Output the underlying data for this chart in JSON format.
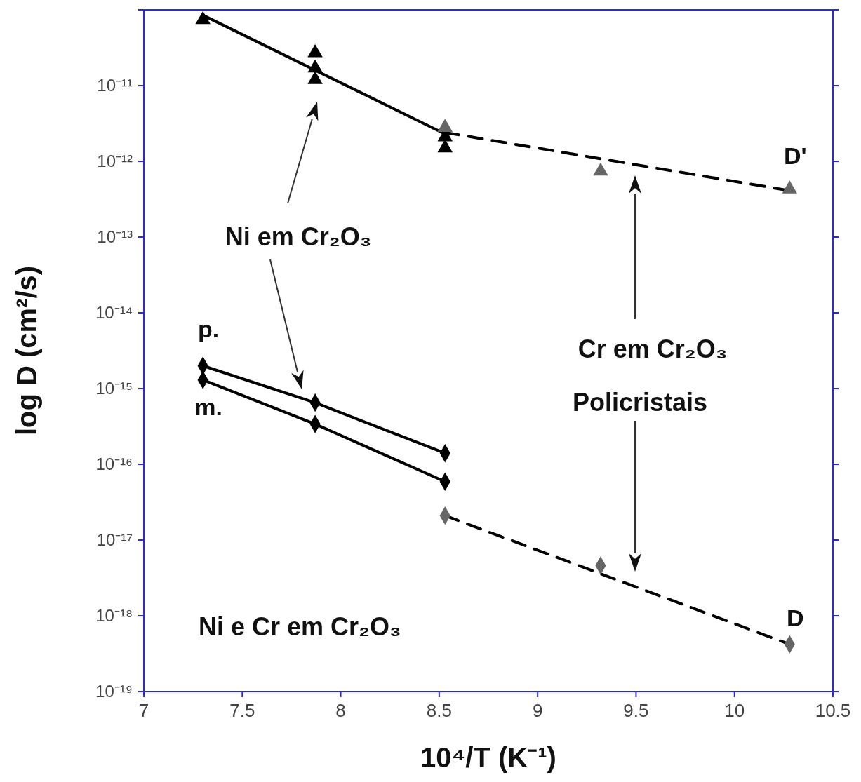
{
  "chart_data": {
    "type": "scatter",
    "xlabel": "10⁴/T (K⁻¹)",
    "ylabel": "log D (cm²/s)",
    "log": "y",
    "xlim": [
      7,
      10.5
    ],
    "xticks": [
      7,
      7.5,
      8,
      8.5,
      9,
      9.5,
      10,
      10.5
    ],
    "ylim": [
      1e-19,
      1e-10
    ],
    "yticks": [
      {
        "value": 1e-19,
        "label": "10⁻¹⁹"
      },
      {
        "value": 1e-18,
        "label": "10⁻¹⁸"
      },
      {
        "value": 1e-17,
        "label": "10⁻¹⁷"
      },
      {
        "value": 1e-16,
        "label": "10⁻¹⁶"
      },
      {
        "value": 1e-15,
        "label": "10⁻¹⁵"
      },
      {
        "value": 1e-14,
        "label": "10⁻¹⁴"
      },
      {
        "value": 1e-13,
        "label": "10⁻¹³"
      },
      {
        "value": 1e-12,
        "label": "10⁻¹²"
      },
      {
        "value": 1e-11,
        "label": "10⁻¹¹"
      },
      {
        "value": 1e-10,
        "label": null
      }
    ],
    "annotations": [
      "Ni em Cr₂O₃",
      "Cr em Cr₂O₃",
      "Policristais",
      "Ni e Cr em Cr₂O₃"
    ],
    "series": [
      {
        "marker": "triangle",
        "color": "#000000",
        "x": [
          7.3,
          7.87,
          7.87,
          7.87,
          8.53,
          8.53
        ],
        "values": [
          7.4e-11,
          2.7e-11,
          1.7e-11,
          1.2e-11,
          2.1e-12,
          1.5e-12
        ]
      },
      {
        "type": "line",
        "line_style": "solid",
        "color": "#000000",
        "x": [
          7.3,
          8.53
        ],
        "values": [
          8.5e-11,
          2.3e-12
        ]
      },
      {
        "name": "D'",
        "marker": "triangle",
        "color": "#666666",
        "x": [
          8.53,
          9.32,
          10.28
        ],
        "values": [
          2.8e-12,
          7.4e-13,
          4.3e-13
        ]
      },
      {
        "type": "line",
        "line_style": "dashed",
        "color": "#000000",
        "x": [
          8.53,
          10.28
        ],
        "values": [
          2.4e-12,
          4.1e-13
        ]
      },
      {
        "type": "line",
        "name": "p.",
        "marker": "diamond",
        "line_style": "solid",
        "color": "#000000",
        "x": [
          7.3,
          7.87,
          8.53
        ],
        "values": [
          2e-15,
          6.5e-16,
          1.4e-16
        ]
      },
      {
        "type": "line",
        "name": "m.",
        "marker": "diamond",
        "line_style": "solid",
        "color": "#000000",
        "x": [
          7.3,
          7.87,
          8.53
        ],
        "values": [
          1.3e-15,
          3.4e-16,
          5.9e-17
        ]
      },
      {
        "name": "D",
        "marker": "diamond",
        "color": "#666666",
        "x": [
          8.53,
          9.32,
          10.28
        ],
        "values": [
          2.1e-17,
          4.6e-18,
          4.2e-19
        ]
      },
      {
        "type": "line",
        "line_style": "dashed",
        "color": "#000000",
        "x": [
          8.53,
          10.28
        ],
        "values": [
          2.1e-17,
          4.2e-19
        ]
      }
    ]
  }
}
